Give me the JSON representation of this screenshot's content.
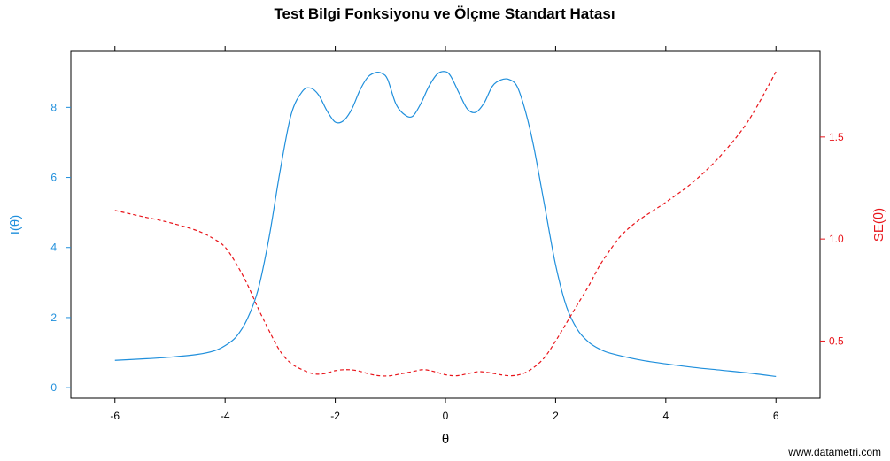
{
  "chart_data": {
    "type": "line",
    "title": "Test Bilgi Fonksiyonu ve Ölçme Standart Hatası",
    "xlabel": "θ",
    "ylabel_left": "I(θ)",
    "ylabel_right": "SE(θ)",
    "xlim": [
      -6.8,
      6.8
    ],
    "ylim_left": [
      -0.3,
      9.6
    ],
    "ylim_right": [
      0.22,
      1.92
    ],
    "x_ticks": [
      -6,
      -4,
      -2,
      0,
      2,
      4,
      6
    ],
    "x_tick_labels": [
      "-6",
      "-4",
      "-2",
      "0",
      "2",
      "4",
      "6"
    ],
    "y_left_ticks": [
      0,
      2,
      4,
      6,
      8
    ],
    "y_left_tick_labels": [
      "0",
      "2",
      "4",
      "6",
      "8"
    ],
    "y_right_ticks": [
      0.5,
      1.0,
      1.5
    ],
    "y_right_tick_labels": [
      "0.5",
      "1.0",
      "1.5"
    ],
    "grid": false,
    "series": [
      {
        "axis": "left",
        "style": "solid",
        "color": "#1f8fdc",
        "x": [
          -6.0,
          -5.5,
          -5.0,
          -4.5,
          -4.2,
          -4.0,
          -3.8,
          -3.6,
          -3.4,
          -3.2,
          -3.0,
          -2.8,
          -2.6,
          -2.45,
          -2.3,
          -2.15,
          -2.0,
          -1.85,
          -1.7,
          -1.55,
          -1.4,
          -1.25,
          -1.15,
          -1.05,
          -0.9,
          -0.75,
          -0.6,
          -0.45,
          -0.3,
          -0.15,
          0.0,
          0.1,
          0.25,
          0.4,
          0.55,
          0.7,
          0.85,
          1.0,
          1.15,
          1.3,
          1.45,
          1.6,
          1.8,
          2.0,
          2.2,
          2.4,
          2.6,
          2.8,
          3.0,
          3.5,
          4.0,
          4.5,
          5.0,
          5.5,
          6.0
        ],
        "y": [
          0.78,
          0.82,
          0.87,
          0.95,
          1.05,
          1.2,
          1.45,
          1.95,
          2.8,
          4.3,
          6.2,
          7.8,
          8.45,
          8.55,
          8.35,
          7.9,
          7.58,
          7.62,
          7.95,
          8.5,
          8.88,
          9.0,
          8.97,
          8.8,
          8.1,
          7.8,
          7.74,
          8.1,
          8.6,
          8.95,
          9.02,
          8.88,
          8.4,
          7.95,
          7.86,
          8.12,
          8.6,
          8.78,
          8.8,
          8.6,
          7.9,
          6.9,
          5.2,
          3.5,
          2.3,
          1.65,
          1.3,
          1.1,
          0.98,
          0.8,
          0.68,
          0.58,
          0.5,
          0.42,
          0.32
        ]
      },
      {
        "axis": "right",
        "style": "dashed",
        "color": "#e8141a",
        "x": [
          -6.0,
          -5.5,
          -5.0,
          -4.5,
          -4.2,
          -4.0,
          -3.8,
          -3.6,
          -3.4,
          -3.2,
          -3.0,
          -2.8,
          -2.6,
          -2.4,
          -2.2,
          -2.0,
          -1.8,
          -1.6,
          -1.4,
          -1.2,
          -1.0,
          -0.8,
          -0.6,
          -0.4,
          -0.2,
          0.0,
          0.2,
          0.4,
          0.6,
          0.8,
          1.0,
          1.2,
          1.4,
          1.6,
          1.8,
          2.0,
          2.2,
          2.4,
          2.6,
          2.8,
          3.0,
          3.2,
          3.5,
          4.0,
          4.5,
          5.0,
          5.5,
          6.0
        ],
        "y": [
          1.14,
          1.11,
          1.08,
          1.04,
          1.0,
          0.96,
          0.88,
          0.78,
          0.66,
          0.55,
          0.45,
          0.39,
          0.36,
          0.34,
          0.34,
          0.355,
          0.36,
          0.355,
          0.34,
          0.33,
          0.33,
          0.34,
          0.35,
          0.36,
          0.35,
          0.335,
          0.33,
          0.34,
          0.35,
          0.345,
          0.335,
          0.33,
          0.34,
          0.37,
          0.42,
          0.5,
          0.59,
          0.68,
          0.77,
          0.87,
          0.95,
          1.02,
          1.09,
          1.18,
          1.28,
          1.41,
          1.58,
          1.82
        ]
      }
    ],
    "colors": {
      "left_axis": "#1f8fdc",
      "right_axis": "#e8141a",
      "frame": "#000000"
    }
  },
  "watermark": "www.datametri.com"
}
